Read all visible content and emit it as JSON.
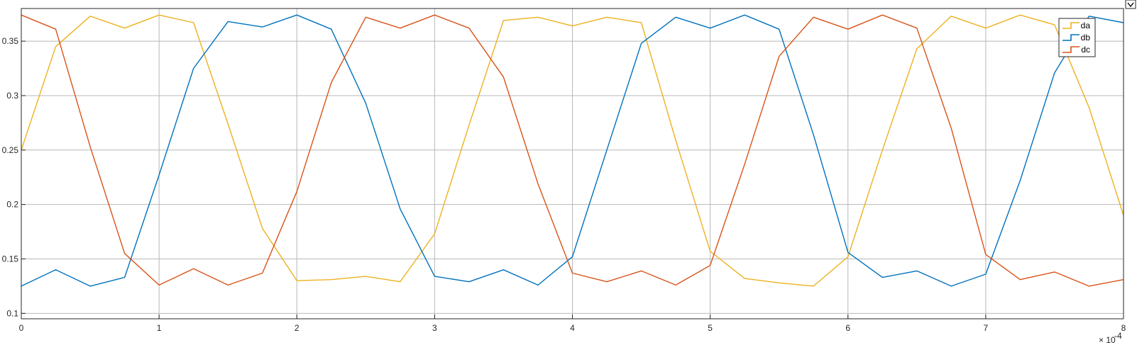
{
  "chart_data": {
    "type": "line",
    "title": "",
    "xlabel": "",
    "ylabel": "",
    "x_exponent_label": "× 10",
    "x_exponent_power": "-4",
    "xlim": [
      0,
      8
    ],
    "ylim": [
      0.095,
      0.38
    ],
    "x_ticks": [
      0,
      1,
      2,
      3,
      4,
      5,
      6,
      7,
      8
    ],
    "x_tick_labels": [
      "0",
      "1",
      "2",
      "3",
      "4",
      "5",
      "6",
      "7",
      "8"
    ],
    "y_ticks": [
      0.1,
      0.15,
      0.2,
      0.25,
      0.3,
      0.35
    ],
    "y_tick_labels": [
      "0.1",
      "0.15",
      "0.2",
      "0.25",
      "0.3",
      "0.35"
    ],
    "grid": true,
    "legend_position": "top-right",
    "series": [
      {
        "name": "da",
        "color": "#EDB120",
        "x": [
          0,
          0.25,
          0.5,
          0.75,
          1.0,
          1.25,
          1.5,
          1.75,
          2.0,
          2.25,
          2.5,
          2.75,
          3.0,
          3.25,
          3.5,
          3.75,
          4.0,
          4.25,
          4.5,
          4.75,
          5.0,
          5.25,
          5.5,
          5.75,
          6.0,
          6.25,
          6.5,
          6.75,
          7.0,
          7.25,
          7.5,
          7.75,
          8.0
        ],
        "y": [
          0.25,
          0.345,
          0.373,
          0.362,
          0.374,
          0.367,
          0.274,
          0.178,
          0.13,
          0.131,
          0.134,
          0.129,
          0.173,
          0.273,
          0.369,
          0.372,
          0.364,
          0.372,
          0.367,
          0.259,
          0.157,
          0.132,
          0.128,
          0.125,
          0.152,
          0.25,
          0.343,
          0.373,
          0.362,
          0.374,
          0.365,
          0.289,
          0.19
        ]
      },
      {
        "name": "db",
        "color": "#0072BD",
        "x": [
          0,
          0.25,
          0.5,
          0.75,
          1.0,
          1.25,
          1.5,
          1.75,
          2.0,
          2.25,
          2.5,
          2.75,
          3.0,
          3.25,
          3.5,
          3.75,
          4.0,
          4.25,
          4.5,
          4.75,
          5.0,
          5.25,
          5.5,
          5.75,
          6.0,
          6.25,
          6.5,
          6.75,
          7.0,
          7.25,
          7.5,
          7.75,
          8.0
        ],
        "y": [
          0.125,
          0.14,
          0.125,
          0.133,
          0.227,
          0.325,
          0.368,
          0.363,
          0.374,
          0.361,
          0.293,
          0.196,
          0.134,
          0.129,
          0.14,
          0.126,
          0.152,
          0.25,
          0.348,
          0.372,
          0.362,
          0.374,
          0.361,
          0.264,
          0.156,
          0.133,
          0.139,
          0.125,
          0.136,
          0.222,
          0.321,
          0.373,
          0.367
        ]
      },
      {
        "name": "dc",
        "color": "#D95319",
        "x": [
          0,
          0.25,
          0.5,
          0.75,
          1.0,
          1.25,
          1.5,
          1.75,
          2.0,
          2.25,
          2.5,
          2.75,
          3.0,
          3.25,
          3.5,
          3.75,
          4.0,
          4.25,
          4.5,
          4.75,
          5.0,
          5.25,
          5.5,
          5.75,
          6.0,
          6.25,
          6.5,
          6.75,
          7.0,
          7.25,
          7.5,
          7.75,
          8.0
        ],
        "y": [
          0.374,
          0.361,
          0.253,
          0.155,
          0.126,
          0.141,
          0.126,
          0.137,
          0.212,
          0.312,
          0.372,
          0.362,
          0.374,
          0.362,
          0.317,
          0.219,
          0.137,
          0.129,
          0.139,
          0.126,
          0.144,
          0.237,
          0.336,
          0.372,
          0.361,
          0.374,
          0.362,
          0.27,
          0.154,
          0.131,
          0.138,
          0.125,
          0.131
        ]
      }
    ]
  }
}
